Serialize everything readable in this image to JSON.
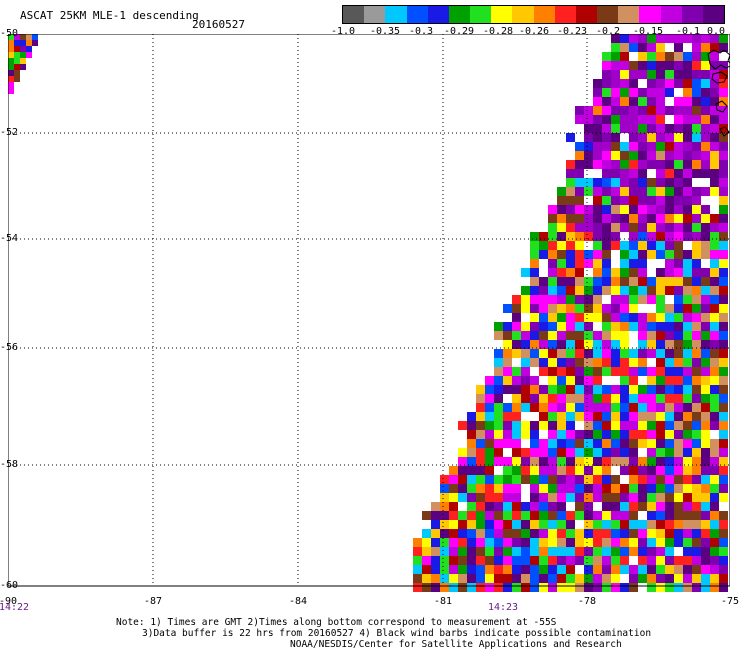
{
  "title": "ASCAT 25KM MLE-1 descending",
  "date": "20160527",
  "colorbar": {
    "colors": [
      "#585858",
      "#9a9a9a",
      "#00c8ff",
      "#0050ff",
      "#1a1ae6",
      "#00a000",
      "#20e020",
      "#ffff00",
      "#ffc800",
      "#ff8000",
      "#ff2020",
      "#b00000",
      "#7a3a18",
      "#d09060",
      "#ff00ff",
      "#c000e0",
      "#8000b0",
      "#5a0080"
    ],
    "labels": [
      "-1.0",
      "-0.35",
      "-0.3",
      "-0.29",
      "-0.28",
      "-0.26",
      "-0.23",
      "-0.2",
      "-0.15",
      "-0.1",
      "0.0"
    ]
  },
  "map": {
    "lat_labels": [
      "-50",
      "-52",
      "-54",
      "-56",
      "-58",
      "-60"
    ],
    "lat_values": [
      -50,
      -52,
      -54,
      -56,
      -58,
      -60
    ],
    "lon_labels": [
      "-90",
      "-87",
      "-84",
      "-81",
      "-78",
      "-75"
    ],
    "lon_values": [
      -90,
      -87,
      -84,
      -81,
      -78,
      -75
    ],
    "lon_range": [
      -90,
      -75
    ],
    "lat_range": [
      -50,
      -60
    ],
    "grid": "dotted",
    "time_labels": [
      "14:22",
      "14:23"
    ]
  },
  "notes": {
    "line1": "Note: 1) Times are GMT 2)Times along bottom correspond to measurement at -55S",
    "line2": "3)Data buffer is 22 hrs from 20160527 4) Black wind barbs indicate possible contamination",
    "line3": "NOAA/NESDIS/Center for Satellite Applications and Research"
  }
}
